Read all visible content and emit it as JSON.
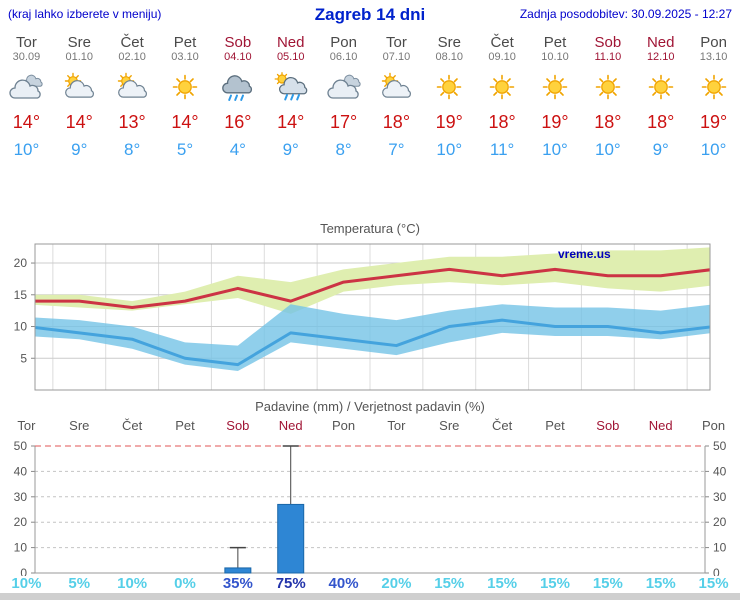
{
  "header": {
    "note": "(kraj lahko izberete v meniju)",
    "title": "Zagreb 14 dni",
    "updated": "Zadnja posodobitev: 30.09.2025 - 12:27"
  },
  "days": [
    {
      "name": "Tor",
      "date": "30.09",
      "weekend": false,
      "icon": "cloud",
      "tmax_label": "14°",
      "tmin_label": "10°",
      "pct_label": "10%",
      "pct_level": "low"
    },
    {
      "name": "Sre",
      "date": "01.10",
      "weekend": false,
      "icon": "sun-cloud",
      "tmax_label": "14°",
      "tmin_label": "9°",
      "pct_label": "5%",
      "pct_level": "low"
    },
    {
      "name": "Čet",
      "date": "02.10",
      "weekend": false,
      "icon": "sun-cloud",
      "tmax_label": "13°",
      "tmin_label": "8°",
      "pct_label": "10%",
      "pct_level": "low"
    },
    {
      "name": "Pet",
      "date": "03.10",
      "weekend": false,
      "icon": "sun",
      "tmax_label": "14°",
      "tmin_label": "5°",
      "pct_label": "0%",
      "pct_level": "low"
    },
    {
      "name": "Sob",
      "date": "04.10",
      "weekend": true,
      "icon": "rain",
      "tmax_label": "16°",
      "tmin_label": "4°",
      "pct_label": "35%",
      "pct_level": "mid"
    },
    {
      "name": "Ned",
      "date": "05.10",
      "weekend": true,
      "icon": "rain-sun",
      "tmax_label": "14°",
      "tmin_label": "9°",
      "pct_label": "75%",
      "pct_level": "high"
    },
    {
      "name": "Pon",
      "date": "06.10",
      "weekend": false,
      "icon": "cloud",
      "tmax_label": "17°",
      "tmin_label": "8°",
      "pct_label": "40%",
      "pct_level": "mid"
    },
    {
      "name": "Tor",
      "date": "07.10",
      "weekend": false,
      "icon": "sun-cloud",
      "tmax_label": "18°",
      "tmin_label": "7°",
      "pct_label": "20%",
      "pct_level": "low"
    },
    {
      "name": "Sre",
      "date": "08.10",
      "weekend": false,
      "icon": "sun",
      "tmax_label": "19°",
      "tmin_label": "10°",
      "pct_label": "15%",
      "pct_level": "low"
    },
    {
      "name": "Čet",
      "date": "09.10",
      "weekend": false,
      "icon": "sun",
      "tmax_label": "18°",
      "tmin_label": "11°",
      "pct_label": "15%",
      "pct_level": "low"
    },
    {
      "name": "Pet",
      "date": "10.10",
      "weekend": false,
      "icon": "sun",
      "tmax_label": "19°",
      "tmin_label": "10°",
      "pct_label": "15%",
      "pct_level": "low"
    },
    {
      "name": "Sob",
      "date": "11.10",
      "weekend": true,
      "icon": "sun",
      "tmax_label": "18°",
      "tmin_label": "10°",
      "pct_label": "15%",
      "pct_level": "low"
    },
    {
      "name": "Ned",
      "date": "12.10",
      "weekend": true,
      "icon": "sun",
      "tmax_label": "18°",
      "tmin_label": "9°",
      "pct_label": "15%",
      "pct_level": "low"
    },
    {
      "name": "Pon",
      "date": "13.10",
      "weekend": false,
      "icon": "sun",
      "tmax_label": "19°",
      "tmin_label": "10°",
      "pct_label": "15%",
      "pct_level": "low"
    }
  ],
  "chart_data": [
    {
      "type": "line",
      "title": "Temperatura (°C)",
      "watermark": "vreme.us",
      "categories": [
        "Tor 30.09",
        "Sre 01.10",
        "Čet 02.10",
        "Pet 03.10",
        "Sob 04.10",
        "Ned 05.10",
        "Pon 06.10",
        "Tor 07.10",
        "Sre 08.10",
        "Čet 09.10",
        "Pet 10.10",
        "Sob 11.10",
        "Ned 12.10",
        "Pon 13.10"
      ],
      "ylim": [
        0,
        23
      ],
      "yticks": [
        5,
        10,
        15,
        20
      ],
      "grid": true,
      "legend": "none",
      "series": [
        {
          "name": "max temperature",
          "color": "#cc3344",
          "values": [
            14,
            14,
            13,
            14,
            16,
            14,
            17,
            18,
            19,
            18,
            19,
            18,
            18,
            19
          ]
        },
        {
          "name": "min temperature",
          "color": "#44a3dd",
          "values": [
            10,
            9,
            8,
            5,
            4,
            9,
            8,
            7,
            10,
            11,
            10,
            10,
            9,
            10
          ]
        }
      ],
      "bands": [
        {
          "name": "max-uncertainty",
          "color": "#dfeeb0",
          "opacity": 1,
          "hi": [
            15,
            15,
            14,
            15.5,
            18,
            17,
            19,
            20,
            21,
            21,
            21.5,
            22,
            22,
            22.5
          ],
          "lo": [
            13.5,
            13,
            12.5,
            13.5,
            14.5,
            12,
            15.5,
            16.5,
            17,
            16.5,
            17,
            16,
            15.5,
            16.5
          ]
        },
        {
          "name": "min-uncertainty",
          "color": "#74c3e6",
          "opacity": 0.8,
          "hi": [
            11.5,
            11,
            10,
            7.5,
            7,
            13.5,
            12,
            11,
            12.5,
            13.5,
            13,
            13,
            12.5,
            13.5
          ],
          "lo": [
            8.5,
            8,
            6.5,
            4,
            3,
            7.5,
            6.5,
            5.5,
            7.5,
            9,
            8.5,
            8.5,
            8,
            9
          ]
        }
      ]
    },
    {
      "type": "bar",
      "title": "Padavine (mm) / Verjetnost padavin (%)",
      "categories": [
        "Tor",
        "Sre",
        "Čet",
        "Pet",
        "Sob",
        "Ned",
        "Pon",
        "Tor",
        "Sre",
        "Čet",
        "Pet",
        "Sob",
        "Ned",
        "Pon"
      ],
      "ylim": [
        0,
        50
      ],
      "yticks": [
        0,
        10,
        20,
        30,
        40,
        50
      ],
      "bar_color": "#2e86d4",
      "values": [
        0,
        0,
        0,
        0,
        2,
        27,
        0,
        0,
        0,
        0,
        0,
        0,
        0,
        0
      ],
      "whisker_hi": [
        0,
        0,
        0,
        0,
        10,
        50,
        0,
        0,
        0,
        0,
        0,
        0,
        0,
        0
      ],
      "probability_pct": [
        10,
        5,
        10,
        0,
        35,
        75,
        40,
        20,
        15,
        15,
        15,
        15,
        15,
        15
      ]
    }
  ],
  "colors": {
    "link_blue": "#0000cc",
    "title_blue": "#0022cc",
    "weekend_red": "#a01535",
    "tmax_red": "#cc1111",
    "tmin_blue": "#3aa0f0",
    "bar_blue": "#2e86d4",
    "rain_limit_red": "#e05555",
    "footer_gray": "#cfcfcf",
    "pct": {
      "low": "#55cfe8",
      "mid": "#3355cc",
      "high": "#2233aa"
    }
  }
}
